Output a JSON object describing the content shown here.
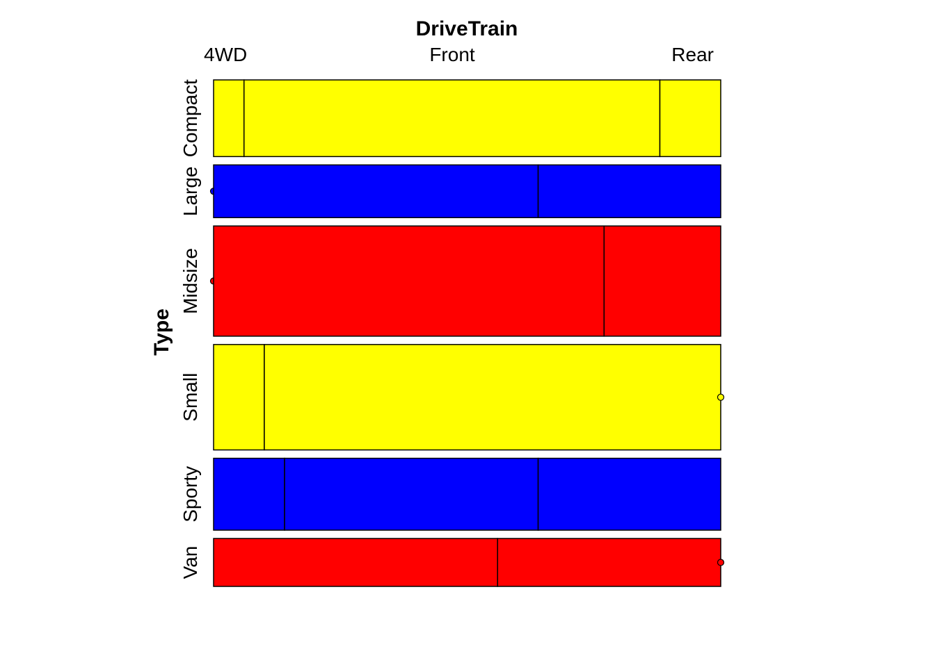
{
  "chart_data": {
    "type": "mosaic",
    "xlabel": "DriveTrain",
    "ylabel": "Type",
    "x_categories": [
      "4WD",
      "Front",
      "Rear"
    ],
    "y_categories": [
      "Compact",
      "Large",
      "Midsize",
      "Small",
      "Sporty",
      "Van"
    ],
    "row_proportions": [
      0.16,
      0.11,
      0.23,
      0.22,
      0.15,
      0.1
    ],
    "rows": [
      {
        "name": "Compact",
        "color": "#FFFF00",
        "shares": {
          "4WD": 0.06,
          "Front": 0.82,
          "Rear": 0.12
        }
      },
      {
        "name": "Large",
        "color": "#0000FF",
        "shares": {
          "4WD": 0.0,
          "Front": 0.64,
          "Rear": 0.36
        }
      },
      {
        "name": "Midsize",
        "color": "#FF0000",
        "shares": {
          "4WD": 0.0,
          "Front": 0.77,
          "Rear": 0.23
        }
      },
      {
        "name": "Small",
        "color": "#FFFF00",
        "shares": {
          "4WD": 0.1,
          "Front": 0.9,
          "Rear": 0.0
        }
      },
      {
        "name": "Sporty",
        "color": "#0000FF",
        "shares": {
          "4WD": 0.14,
          "Front": 0.5,
          "Rear": 0.36
        }
      },
      {
        "name": "Van",
        "color": "#FF0000",
        "shares": {
          "4WD": 0.56,
          "Front": 0.44,
          "Rear": 0.0
        }
      }
    ]
  }
}
